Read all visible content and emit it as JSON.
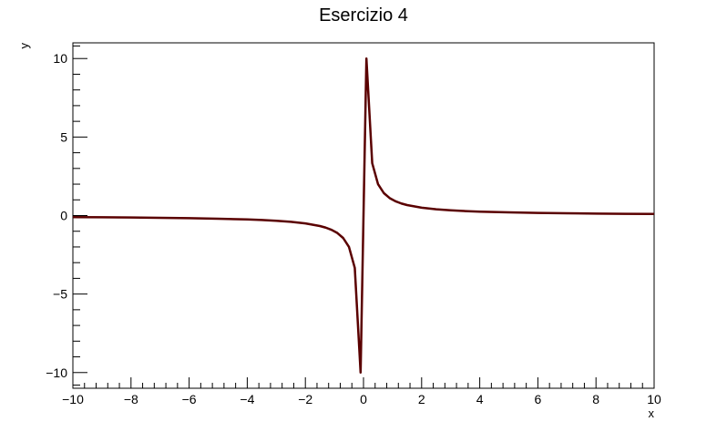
{
  "chart_data": {
    "type": "line",
    "title": "Esercizio 4",
    "xlabel": "x",
    "ylabel": "y",
    "xlim": [
      -10,
      10
    ],
    "ylim": [
      -11,
      11
    ],
    "x_ticks": [
      -10,
      -8,
      -6,
      -4,
      -2,
      0,
      2,
      4,
      6,
      8,
      10
    ],
    "x_tick_labels": [
      "−10",
      "−8",
      "−6",
      "−4",
      "−2",
      "0",
      "2",
      "4",
      "6",
      "8",
      "10"
    ],
    "y_ticks": [
      -10,
      -5,
      0,
      5,
      10
    ],
    "y_tick_labels": [
      "−10",
      "−5",
      "0",
      "5",
      "10"
    ],
    "grid": false,
    "line_color": "#5a0000",
    "series": [
      {
        "x": [
          -10,
          -9,
          -8,
          -7,
          -6,
          -5,
          -4,
          -3.5,
          -3,
          -2.5,
          -2,
          -1.5,
          -1.3,
          -1.1,
          -0.9,
          -0.7,
          -0.5,
          -0.3,
          -0.1,
          0.1,
          0.3,
          0.5,
          0.7,
          0.9,
          1.1,
          1.3,
          1.5,
          2,
          2.5,
          3,
          3.5,
          4,
          5,
          6,
          7,
          8,
          9,
          10
        ],
        "y": [
          -0.1,
          -0.111,
          -0.125,
          -0.143,
          -0.167,
          -0.2,
          -0.25,
          -0.286,
          -0.333,
          -0.4,
          -0.5,
          -0.667,
          -0.769,
          -0.909,
          -1.111,
          -1.429,
          -2,
          -3.333,
          -10,
          10,
          3.333,
          2,
          1.429,
          1.111,
          0.909,
          0.769,
          0.667,
          0.5,
          0.4,
          0.333,
          0.286,
          0.25,
          0.2,
          0.167,
          0.143,
          0.125,
          0.111,
          0.1
        ]
      }
    ]
  }
}
